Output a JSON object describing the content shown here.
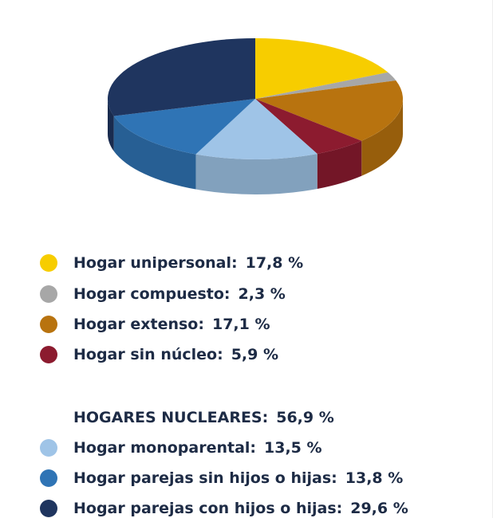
{
  "chart_data": {
    "type": "pie",
    "categories": [
      "Hogar unipersonal:",
      "Hogar compuesto:",
      "Hogar extenso:",
      "Hogar sin núcleo:",
      "Hogar monoparental:",
      "Hogar parejas sin hijos o hijas:",
      "Hogar parejas con hijos o hijas:"
    ],
    "values": [
      17.8,
      2.3,
      17.1,
      5.9,
      13.5,
      13.8,
      29.6
    ],
    "value_labels": [
      "17,8 %",
      "2,3 %",
      "17,1 %",
      "5,9 %",
      "13,5 %",
      "13,8 %",
      "29,6 %"
    ],
    "colors": [
      "#f7cd00",
      "#a7a7a7",
      "#b8730f",
      "#8c1b2f",
      "#9fc4e7",
      "#2f74b5",
      "#1f355f"
    ],
    "group_label": "HOGARES NUCLEARES:",
    "group_value": 56.9,
    "group_value_label": "56,9 %"
  }
}
